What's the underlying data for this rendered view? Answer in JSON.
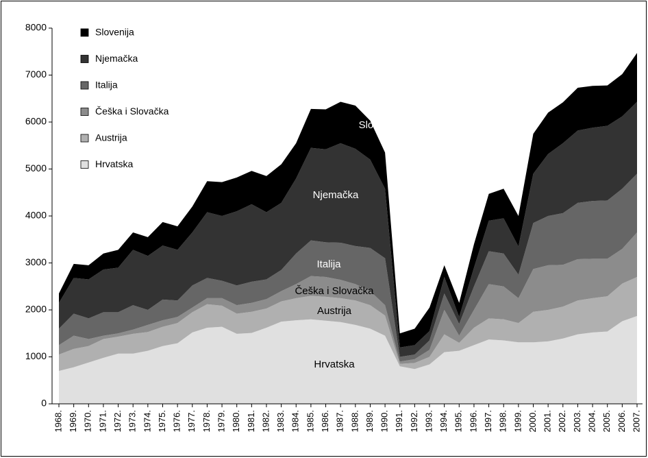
{
  "chart_data": {
    "type": "stacked_area",
    "categories": [
      "1968.",
      "1969.",
      "1970.",
      "1971.",
      "1972.",
      "1973.",
      "1974.",
      "1975.",
      "1976.",
      "1977.",
      "1978.",
      "1979.",
      "1980.",
      "1981.",
      "1982.",
      "1983.",
      "1984.",
      "1985.",
      "1986.",
      "1987.",
      "1988.",
      "1989.",
      "1990.",
      "1991.",
      "1992.",
      "1993.",
      "1994.",
      "1995.",
      "1996.",
      "1997.",
      "1998.",
      "1999.",
      "2000.",
      "2001.",
      "2002.",
      "2003.",
      "2004.",
      "2005.",
      "2006.",
      "2007."
    ],
    "series": [
      {
        "name": "Hrvatska",
        "color": "#e0e0e0",
        "label_color": "#000000",
        "values": [
          700,
          780,
          880,
          980,
          1070,
          1070,
          1130,
          1230,
          1290,
          1520,
          1620,
          1640,
          1490,
          1510,
          1620,
          1750,
          1780,
          1800,
          1770,
          1740,
          1680,
          1600,
          1450,
          800,
          740,
          840,
          1100,
          1130,
          1250,
          1370,
          1350,
          1310,
          1310,
          1330,
          1390,
          1480,
          1520,
          1540,
          1760,
          1870
        ]
      },
      {
        "name": "Austrija",
        "color": "#b0b0b0",
        "label_color": "#000000",
        "values": [
          350,
          390,
          350,
          400,
          360,
          420,
          400,
          410,
          430,
          430,
          500,
          450,
          430,
          450,
          410,
          430,
          470,
          500,
          510,
          510,
          520,
          500,
          430,
          50,
          130,
          160,
          380,
          170,
          370,
          450,
          450,
          410,
          650,
          670,
          680,
          720,
          730,
          750,
          800,
          830
        ]
      },
      {
        "name": "Češka i Slovačka",
        "color": "#8c8c8c",
        "label_color": "#000000",
        "values": [
          200,
          280,
          150,
          70,
          70,
          90,
          150,
          140,
          130,
          100,
          130,
          160,
          180,
          190,
          200,
          220,
          300,
          420,
          420,
          390,
          350,
          300,
          220,
          50,
          80,
          150,
          520,
          150,
          380,
          730,
          700,
          530,
          910,
          950,
          890,
          880,
          840,
          800,
          740,
          950
        ]
      },
      {
        "name": "Italija",
        "color": "#666666",
        "label_color": "#ffffff",
        "values": [
          350,
          470,
          440,
          500,
          450,
          520,
          320,
          440,
          350,
          470,
          430,
          370,
          420,
          450,
          420,
          450,
          650,
          760,
          740,
          790,
          810,
          920,
          1000,
          100,
          100,
          200,
          350,
          250,
          500,
          700,
          700,
          500,
          980,
          1050,
          1100,
          1200,
          1230,
          1240,
          1280,
          1250
        ]
      },
      {
        "name": "Njemačka",
        "color": "#333333",
        "label_color": "#ffffff",
        "values": [
          550,
          760,
          830,
          910,
          950,
          1180,
          1150,
          1150,
          1080,
          1130,
          1400,
          1380,
          1580,
          1650,
          1430,
          1430,
          1600,
          1970,
          1980,
          2120,
          2070,
          1880,
          1480,
          200,
          200,
          200,
          350,
          150,
          400,
          650,
          750,
          600,
          1050,
          1320,
          1490,
          1540,
          1560,
          1590,
          1540,
          1530
        ]
      },
      {
        "name": "Slovenija",
        "color": "#000000",
        "label_color": "#ffffff",
        "values": [
          200,
          300,
          300,
          340,
          380,
          370,
          400,
          500,
          500,
          550,
          660,
          720,
          720,
          710,
          770,
          820,
          750,
          830,
          850,
          880,
          920,
          830,
          770,
          300,
          350,
          500,
          250,
          300,
          500,
          570,
          630,
          650,
          850,
          880,
          870,
          910,
          890,
          860,
          900,
          1040
        ]
      }
    ],
    "ylim": [
      0,
      8000
    ],
    "yticks": [
      0,
      1000,
      2000,
      3000,
      4000,
      5000,
      6000,
      7000,
      8000
    ],
    "legend": "upper left"
  }
}
